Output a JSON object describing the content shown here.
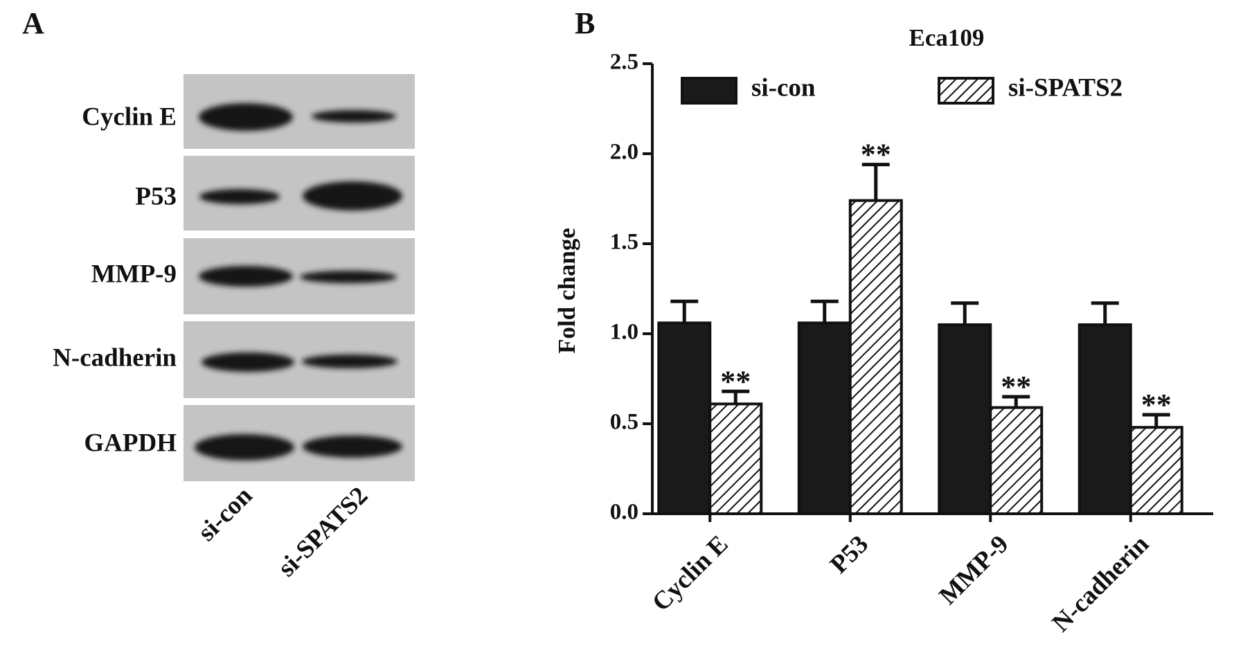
{
  "panel_labels": [
    "A",
    "B"
  ],
  "blot": {
    "rows": [
      "Cyclin E",
      "P53",
      "MMP-9",
      "N-cadherin",
      "GAPDH"
    ],
    "lanes": [
      "si-con",
      "si-SPATS2"
    ]
  },
  "chart_data": {
    "type": "bar",
    "title": "Eca109",
    "y_label": "Fold change",
    "categories": [
      "Cyclin E",
      "P53",
      "MMP-9",
      "N-cadherin"
    ],
    "series": [
      {
        "name": "si-con",
        "color": "#1a1a1a",
        "values": [
          1.06,
          1.06,
          1.05,
          1.05
        ],
        "errors": [
          0.12,
          0.12,
          0.12,
          0.12
        ]
      },
      {
        "name": "si-SPATS2",
        "color": "hatch",
        "values": [
          0.61,
          1.74,
          0.59,
          0.48
        ],
        "errors": [
          0.07,
          0.2,
          0.06,
          0.07
        ],
        "significance": [
          "**",
          "**",
          "**",
          "**"
        ]
      }
    ],
    "ylim": [
      0,
      2.5
    ],
    "yticks": [
      {
        "value": 0,
        "label": "0.0"
      },
      0.5,
      {
        "value": 1,
        "label": "1.0"
      },
      1.5,
      {
        "value": 2,
        "label": "2.0"
      },
      2.5
    ],
    "legend": "top"
  }
}
